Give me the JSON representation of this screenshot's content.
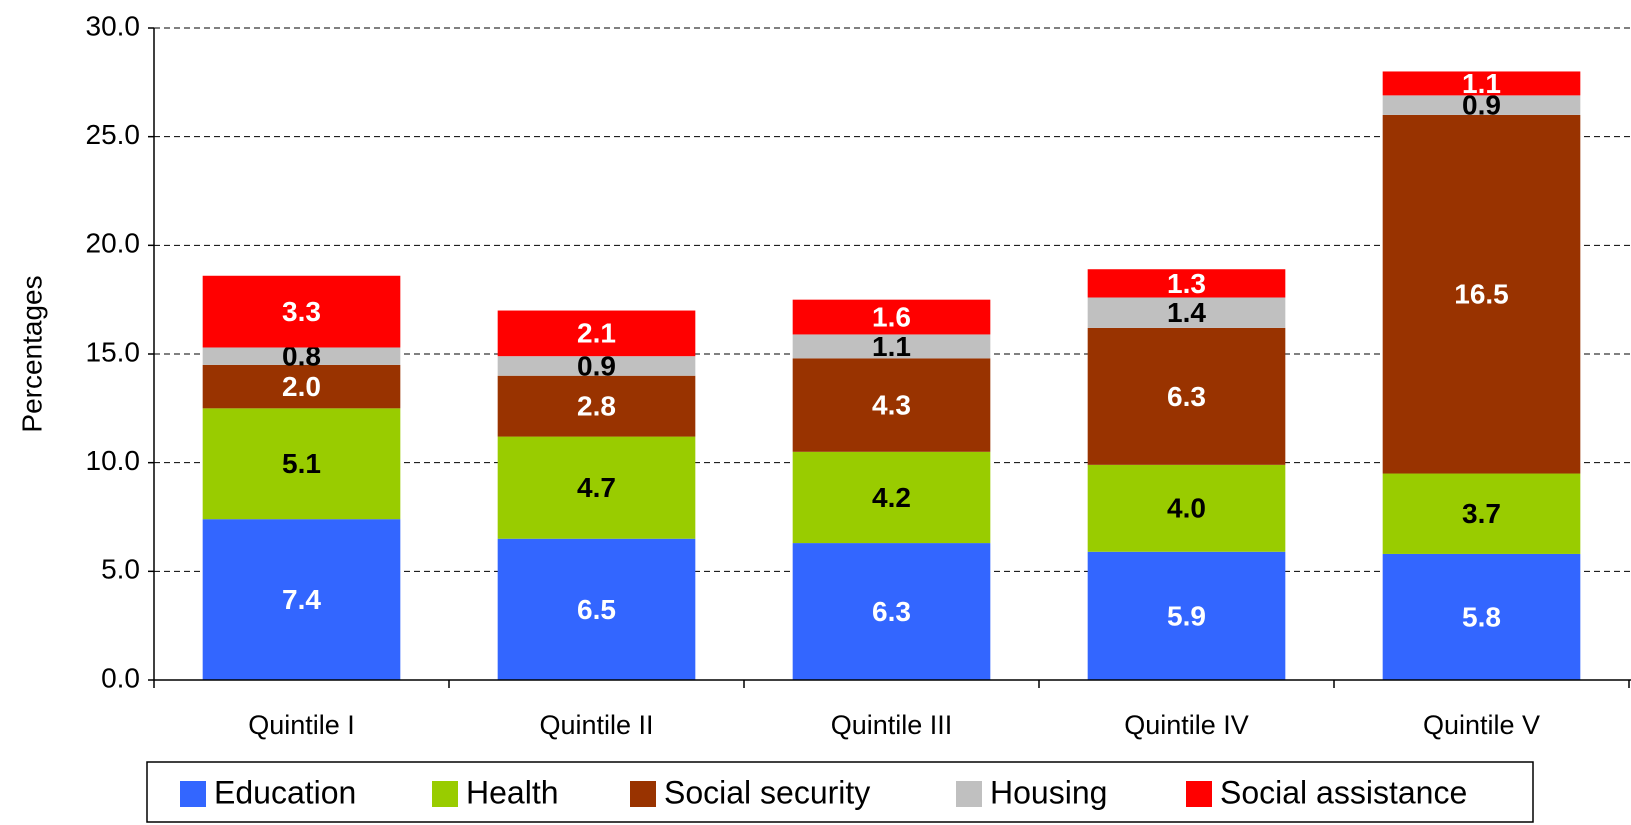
{
  "chart_data": {
    "type": "stacked_bar",
    "y_label": "Percentages",
    "categories": [
      "Quintile I",
      "Quintile II",
      "Quintile III",
      "Quintile IV",
      "Quintile V"
    ],
    "series": [
      {
        "name": "Education",
        "color": "#3366ff",
        "label_color": "#ffffff",
        "values": [
          7.4,
          6.5,
          6.3,
          5.9,
          5.8
        ],
        "value_labels": [
          "7.4",
          "6.5",
          "6.3",
          "5.9",
          "5.8"
        ]
      },
      {
        "name": "Health",
        "color": "#99cc00",
        "label_color": "#000000",
        "values": [
          5.1,
          4.7,
          4.2,
          4.0,
          3.7
        ],
        "value_labels": [
          "5.1",
          "4.7",
          "4.2",
          "4.0",
          "3.7"
        ]
      },
      {
        "name": "Social security",
        "color": "#993300",
        "label_color": "#ffffff",
        "values": [
          2.0,
          2.8,
          4.3,
          6.3,
          16.5
        ],
        "value_labels": [
          "2.0",
          "2.8",
          "4.3",
          "6.3",
          "16.5"
        ]
      },
      {
        "name": "Housing",
        "color": "#c0c0c0",
        "label_color": "#000000",
        "values": [
          0.8,
          0.9,
          1.1,
          1.4,
          0.9
        ],
        "value_labels": [
          "0.8",
          "0.9",
          "1.1",
          "1.4",
          "0.9"
        ]
      },
      {
        "name": "Social assistance",
        "color": "#ff0000",
        "label_color": "#ffffff",
        "values": [
          3.3,
          2.1,
          1.6,
          1.3,
          1.1
        ],
        "value_labels": [
          "3.3",
          "2.1",
          "1.6",
          "1.3",
          "1.1"
        ]
      }
    ],
    "ylim": [
      0,
      30
    ],
    "yticks": [
      {
        "value": 0,
        "label": "0.0"
      },
      {
        "value": 5,
        "label": "5.0"
      },
      {
        "value": 10,
        "label": "10.0"
      },
      {
        "value": 15,
        "label": "15.0"
      },
      {
        "value": 20,
        "label": "20.0"
      },
      {
        "value": 25,
        "label": "25.0"
      },
      {
        "value": 30,
        "label": "30.0"
      }
    ],
    "grid": true,
    "legend": "bottom"
  }
}
